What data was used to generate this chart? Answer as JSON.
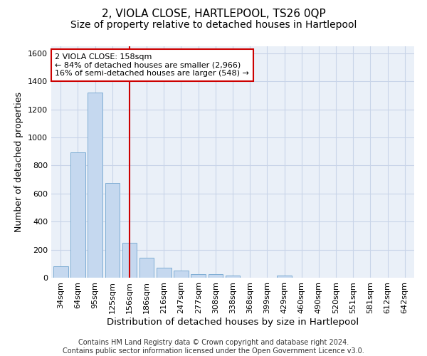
{
  "title": "2, VIOLA CLOSE, HARTLEPOOL, TS26 0QP",
  "subtitle": "Size of property relative to detached houses in Hartlepool",
  "xlabel": "Distribution of detached houses by size in Hartlepool",
  "ylabel": "Number of detached properties",
  "categories": [
    "34sqm",
    "64sqm",
    "95sqm",
    "125sqm",
    "156sqm",
    "186sqm",
    "216sqm",
    "247sqm",
    "277sqm",
    "308sqm",
    "338sqm",
    "368sqm",
    "399sqm",
    "429sqm",
    "460sqm",
    "490sqm",
    "520sqm",
    "551sqm",
    "581sqm",
    "612sqm",
    "642sqm"
  ],
  "values": [
    80,
    893,
    1320,
    675,
    247,
    143,
    73,
    52,
    27,
    27,
    15,
    0,
    0,
    14,
    0,
    0,
    0,
    0,
    0,
    0,
    0
  ],
  "bar_color": "#c5d8ef",
  "bar_edge_color": "#7eadd4",
  "vline_x_index": 4,
  "vline_color": "#cc0000",
  "annotation_line1": "2 VIOLA CLOSE: 158sqm",
  "annotation_line2": "← 84% of detached houses are smaller (2,966)",
  "annotation_line3": "16% of semi-detached houses are larger (548) →",
  "annotation_box_facecolor": "#ffffff",
  "annotation_box_edgecolor": "#cc0000",
  "ylim": [
    0,
    1650
  ],
  "yticks": [
    0,
    200,
    400,
    600,
    800,
    1000,
    1200,
    1400,
    1600
  ],
  "grid_color": "#c8d4e8",
  "bg_color": "#eaf0f8",
  "footer": "Contains HM Land Registry data © Crown copyright and database right 2024.\nContains public sector information licensed under the Open Government Licence v3.0.",
  "title_fontsize": 11,
  "subtitle_fontsize": 10,
  "xlabel_fontsize": 9.5,
  "ylabel_fontsize": 9,
  "tick_fontsize": 8,
  "footer_fontsize": 7,
  "annot_fontsize": 8
}
